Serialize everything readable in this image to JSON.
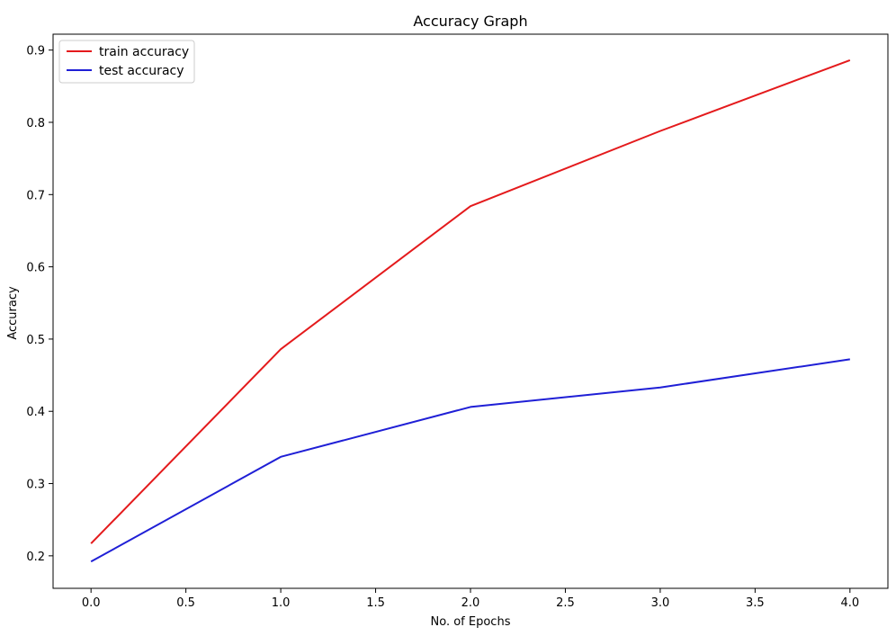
{
  "chart_data": {
    "type": "line",
    "title": "Accuracy Graph",
    "xlabel": "No. of Epochs",
    "ylabel": "Accuracy",
    "x": [
      0,
      1,
      2,
      3,
      4
    ],
    "xlim": [
      -0.2,
      4.2
    ],
    "ylim": [
      0.155,
      0.922
    ],
    "xticks": [
      0.0,
      0.5,
      1.0,
      1.5,
      2.0,
      2.5,
      3.0,
      3.5,
      4.0
    ],
    "xtick_labels": [
      "0.0",
      "0.5",
      "1.0",
      "1.5",
      "2.0",
      "2.5",
      "3.0",
      "3.5",
      "4.0"
    ],
    "yticks": [
      0.2,
      0.3,
      0.4,
      0.5,
      0.6,
      0.7,
      0.8,
      0.9
    ],
    "ytick_labels": [
      "0.2",
      "0.3",
      "0.4",
      "0.5",
      "0.6",
      "0.7",
      "0.8",
      "0.9"
    ],
    "grid": false,
    "legend_position": "top-left",
    "series": [
      {
        "name": "train accuracy",
        "color": "#e41a1c",
        "values": [
          0.217,
          0.486,
          0.684,
          0.788,
          0.886
        ]
      },
      {
        "name": "test accuracy",
        "color": "#1f1fd6",
        "values": [
          0.192,
          0.337,
          0.406,
          0.433,
          0.472
        ]
      }
    ]
  }
}
